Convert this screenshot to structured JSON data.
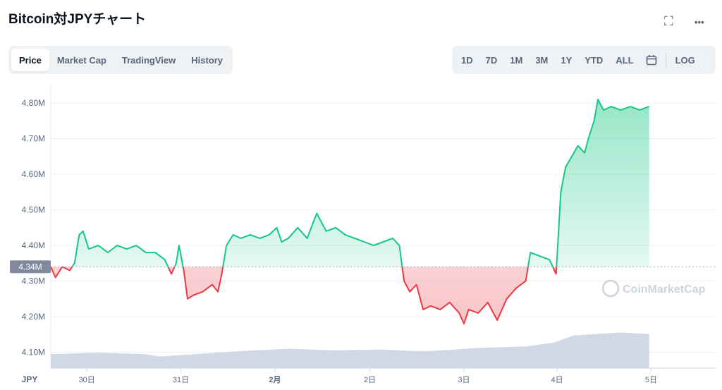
{
  "header": {
    "title": "Bitcoin対JPYチャート"
  },
  "icons": {
    "fullscreen": "⛶",
    "more": "•••"
  },
  "tabs": [
    {
      "label": "Price"
    },
    {
      "label": "Market Cap"
    },
    {
      "label": "TradingView"
    },
    {
      "label": "History"
    }
  ],
  "ranges": [
    {
      "label": "1D"
    },
    {
      "label": "7D"
    },
    {
      "label": "1M"
    },
    {
      "label": "3M"
    },
    {
      "label": "1Y"
    },
    {
      "label": "YTD"
    },
    {
      "label": "ALL"
    }
  ],
  "log_label": "LOG",
  "watermark": "CoinMarketCap",
  "currency_label": "JPY",
  "current_price_label": "4.34M",
  "colors": {
    "up": "#16c784",
    "down": "#ea3943",
    "volume": "#cfd6e4",
    "accent": "#58667e"
  },
  "chart_data": {
    "type": "line",
    "title": "",
    "xlabel": "",
    "ylabel": "",
    "yticks": [
      "4.10M",
      "4.20M",
      "4.30M",
      "4.40M",
      "4.50M",
      "4.60M",
      "4.70M",
      "4.80M"
    ],
    "ytick_values": [
      4.1,
      4.2,
      4.3,
      4.4,
      4.5,
      4.6,
      4.7,
      4.8
    ],
    "ylim": [
      4.06,
      4.82
    ],
    "xlim": [
      0,
      7
    ],
    "xticks": [
      {
        "label": "30日",
        "x": 0.38
      },
      {
        "label": "31日",
        "x": 1.37
      },
      {
        "label": "2月",
        "x": 2.36
      },
      {
        "label": "2日",
        "x": 3.36
      },
      {
        "label": "3日",
        "x": 4.35
      },
      {
        "label": "4日",
        "x": 5.33
      },
      {
        "label": "5日",
        "x": 6.32
      }
    ],
    "baseline": 4.34,
    "series": [
      {
        "values": [
          [
            0.0,
            4.34
          ],
          [
            0.05,
            4.31
          ],
          [
            0.12,
            4.34
          ],
          [
            0.2,
            4.33
          ],
          [
            0.25,
            4.35
          ],
          [
            0.3,
            4.43
          ],
          [
            0.34,
            4.44
          ],
          [
            0.4,
            4.39
          ],
          [
            0.5,
            4.4
          ],
          [
            0.6,
            4.38
          ],
          [
            0.7,
            4.4
          ],
          [
            0.8,
            4.39
          ],
          [
            0.9,
            4.4
          ],
          [
            1.0,
            4.38
          ],
          [
            1.1,
            4.38
          ],
          [
            1.2,
            4.36
          ],
          [
            1.27,
            4.32
          ],
          [
            1.32,
            4.35
          ],
          [
            1.35,
            4.4
          ],
          [
            1.4,
            4.33
          ],
          [
            1.44,
            4.25
          ],
          [
            1.5,
            4.26
          ],
          [
            1.6,
            4.27
          ],
          [
            1.7,
            4.29
          ],
          [
            1.76,
            4.27
          ],
          [
            1.8,
            4.32
          ],
          [
            1.85,
            4.4
          ],
          [
            1.92,
            4.43
          ],
          [
            2.0,
            4.42
          ],
          [
            2.1,
            4.43
          ],
          [
            2.2,
            4.42
          ],
          [
            2.3,
            4.43
          ],
          [
            2.38,
            4.45
          ],
          [
            2.43,
            4.41
          ],
          [
            2.5,
            4.42
          ],
          [
            2.6,
            4.45
          ],
          [
            2.7,
            4.42
          ],
          [
            2.8,
            4.49
          ],
          [
            2.9,
            4.44
          ],
          [
            3.0,
            4.45
          ],
          [
            3.1,
            4.43
          ],
          [
            3.2,
            4.42
          ],
          [
            3.3,
            4.41
          ],
          [
            3.4,
            4.4
          ],
          [
            3.5,
            4.41
          ],
          [
            3.6,
            4.42
          ],
          [
            3.67,
            4.4
          ],
          [
            3.72,
            4.3
          ],
          [
            3.78,
            4.27
          ],
          [
            3.85,
            4.29
          ],
          [
            3.92,
            4.22
          ],
          [
            4.0,
            4.23
          ],
          [
            4.1,
            4.22
          ],
          [
            4.2,
            4.24
          ],
          [
            4.3,
            4.21
          ],
          [
            4.35,
            4.18
          ],
          [
            4.4,
            4.22
          ],
          [
            4.5,
            4.21
          ],
          [
            4.6,
            4.24
          ],
          [
            4.7,
            4.19
          ],
          [
            4.8,
            4.25
          ],
          [
            4.9,
            4.28
          ],
          [
            5.0,
            4.3
          ],
          [
            5.05,
            4.38
          ],
          [
            5.15,
            4.37
          ],
          [
            5.25,
            4.36
          ],
          [
            5.32,
            4.32
          ],
          [
            5.37,
            4.55
          ],
          [
            5.42,
            4.62
          ],
          [
            5.55,
            4.68
          ],
          [
            5.62,
            4.66
          ],
          [
            5.66,
            4.7
          ],
          [
            5.72,
            4.75
          ],
          [
            5.76,
            4.81
          ],
          [
            5.82,
            4.78
          ],
          [
            5.9,
            4.79
          ],
          [
            6.0,
            4.78
          ],
          [
            6.1,
            4.79
          ],
          [
            6.2,
            4.78
          ],
          [
            6.3,
            4.79
          ]
        ]
      }
    ],
    "volume": {
      "ylim": [
        0,
        1
      ],
      "values": [
        [
          0.0,
          0.18
        ],
        [
          0.5,
          0.2
        ],
        [
          1.0,
          0.18
        ],
        [
          1.15,
          0.15
        ],
        [
          1.5,
          0.18
        ],
        [
          2.0,
          0.22
        ],
        [
          2.5,
          0.25
        ],
        [
          3.0,
          0.23
        ],
        [
          3.5,
          0.24
        ],
        [
          3.8,
          0.22
        ],
        [
          4.0,
          0.22
        ],
        [
          4.5,
          0.26
        ],
        [
          5.0,
          0.28
        ],
        [
          5.3,
          0.33
        ],
        [
          5.5,
          0.42
        ],
        [
          6.0,
          0.46
        ],
        [
          6.3,
          0.44
        ]
      ]
    }
  }
}
